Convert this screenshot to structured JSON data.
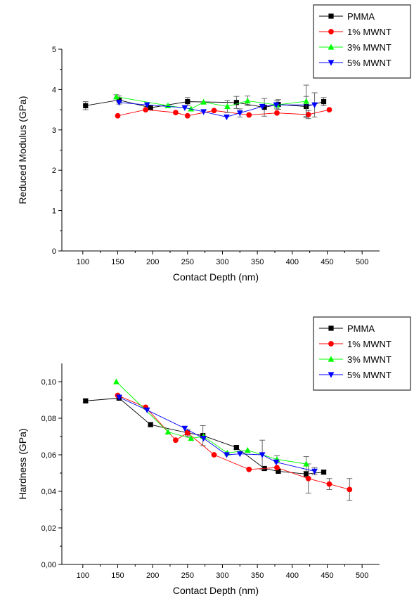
{
  "chart_data": [
    {
      "type": "line",
      "title": "",
      "xlabel": "Contact Depth (nm)",
      "ylabel": "Reduced Modulus (GPa)",
      "xlim": [
        70,
        525
      ],
      "ylim": [
        0,
        5
      ],
      "xticks": [
        100,
        150,
        200,
        250,
        300,
        350,
        400,
        450,
        500
      ],
      "yticks": [
        0,
        1,
        2,
        3,
        4,
        5
      ],
      "ytick_labels": [
        "0",
        "1",
        "2",
        "3",
        "4",
        "5"
      ],
      "grid": false,
      "legend_position": "top-right",
      "series": [
        {
          "name": "PMMA",
          "color": "#000000",
          "marker": "square",
          "x": [
            104,
            152,
            197,
            250,
            320,
            360,
            380,
            420,
            445
          ],
          "y": [
            3.6,
            3.74,
            3.55,
            3.7,
            3.68,
            3.56,
            3.63,
            3.58,
            3.7
          ],
          "err": [
            0.1,
            0.1,
            0.05,
            0.1,
            0.15,
            0.22,
            0.12,
            0.25,
            0.1
          ]
        },
        {
          "name": "1% MWNT",
          "color": "#ff0000",
          "marker": "circle",
          "x": [
            150,
            190,
            233,
            250,
            288,
            338,
            378,
            423,
            453
          ],
          "y": [
            3.35,
            3.5,
            3.43,
            3.35,
            3.48,
            3.37,
            3.42,
            3.38,
            3.5
          ],
          "err": [
            0,
            0,
            0,
            0,
            0,
            0,
            0,
            0.1,
            0
          ]
        },
        {
          "name": "3% MWNT",
          "color": "#00ff00",
          "marker": "triangle-up",
          "x": [
            148,
            222,
            255,
            273,
            307,
            336,
            378,
            420
          ],
          "y": [
            3.82,
            3.6,
            3.52,
            3.69,
            3.58,
            3.72,
            3.62,
            3.71
          ],
          "err": [
            0.05,
            0,
            0,
            0,
            0.15,
            0.12,
            0.1,
            0.4
          ]
        },
        {
          "name": "5% MWNT",
          "color": "#0000ff",
          "marker": "triangle-down",
          "x": [
            152,
            192,
            246,
            273,
            306,
            325,
            357,
            377,
            432
          ],
          "y": [
            3.68,
            3.62,
            3.55,
            3.45,
            3.32,
            3.42,
            3.58,
            3.62,
            3.62
          ],
          "err": [
            0,
            0,
            0,
            0,
            0,
            0.1,
            0,
            0,
            0.3
          ]
        }
      ]
    },
    {
      "type": "line",
      "title": "",
      "xlabel": "Contact Depth (nm)",
      "ylabel": "Hardness (GPa)",
      "xlim": [
        70,
        525
      ],
      "ylim": [
        0,
        0.11
      ],
      "xticks": [
        100,
        150,
        200,
        250,
        300,
        350,
        400,
        450,
        500
      ],
      "yticks": [
        0,
        0.02,
        0.04,
        0.06,
        0.08,
        0.1
      ],
      "ytick_labels": [
        "0,00",
        "0,02",
        "0,04",
        "0,06",
        "0,08",
        "0,10"
      ],
      "grid": false,
      "legend_position": "top-right",
      "series": [
        {
          "name": "PMMA",
          "color": "#000000",
          "marker": "square",
          "x": [
            104,
            152,
            197,
            250,
            272,
            320,
            360,
            380,
            420,
            445
          ],
          "y": [
            0.0895,
            0.091,
            0.0765,
            0.072,
            0.0705,
            0.064,
            0.0525,
            0.051,
            0.0495,
            0.0505
          ],
          "err": [
            0.001,
            0.001,
            0.001,
            0.002,
            0.0055,
            0.001,
            0.001,
            0.001,
            0.0015,
            0.001
          ]
        },
        {
          "name": "1% MWNT",
          "color": "#ff0000",
          "marker": "circle",
          "x": [
            150,
            190,
            233,
            250,
            288,
            338,
            378,
            423,
            453,
            482
          ],
          "y": [
            0.0925,
            0.086,
            0.068,
            0.072,
            0.06,
            0.052,
            0.053,
            0.047,
            0.044,
            0.041
          ],
          "err": [
            0,
            0,
            0,
            0,
            0,
            0,
            0,
            0.008,
            0.003,
            0.006
          ]
        },
        {
          "name": "3% MWNT",
          "color": "#00ff00",
          "marker": "triangle-up",
          "x": [
            148,
            222,
            255,
            273,
            307,
            336,
            378,
            420
          ],
          "y": [
            0.1,
            0.0725,
            0.069,
            0.07,
            0.061,
            0.0625,
            0.0575,
            0.055
          ],
          "err": [
            0,
            0,
            0,
            0,
            0,
            0,
            0.002,
            0.004
          ]
        },
        {
          "name": "5% MWNT",
          "color": "#0000ff",
          "marker": "triangle-down",
          "x": [
            152,
            192,
            246,
            273,
            306,
            325,
            357,
            377,
            432
          ],
          "y": [
            0.0915,
            0.0845,
            0.0745,
            0.069,
            0.06,
            0.0605,
            0.06,
            0.056,
            0.051
          ],
          "err": [
            0,
            0,
            0,
            0,
            0,
            0,
            0.008,
            0,
            0.002
          ]
        }
      ]
    }
  ]
}
